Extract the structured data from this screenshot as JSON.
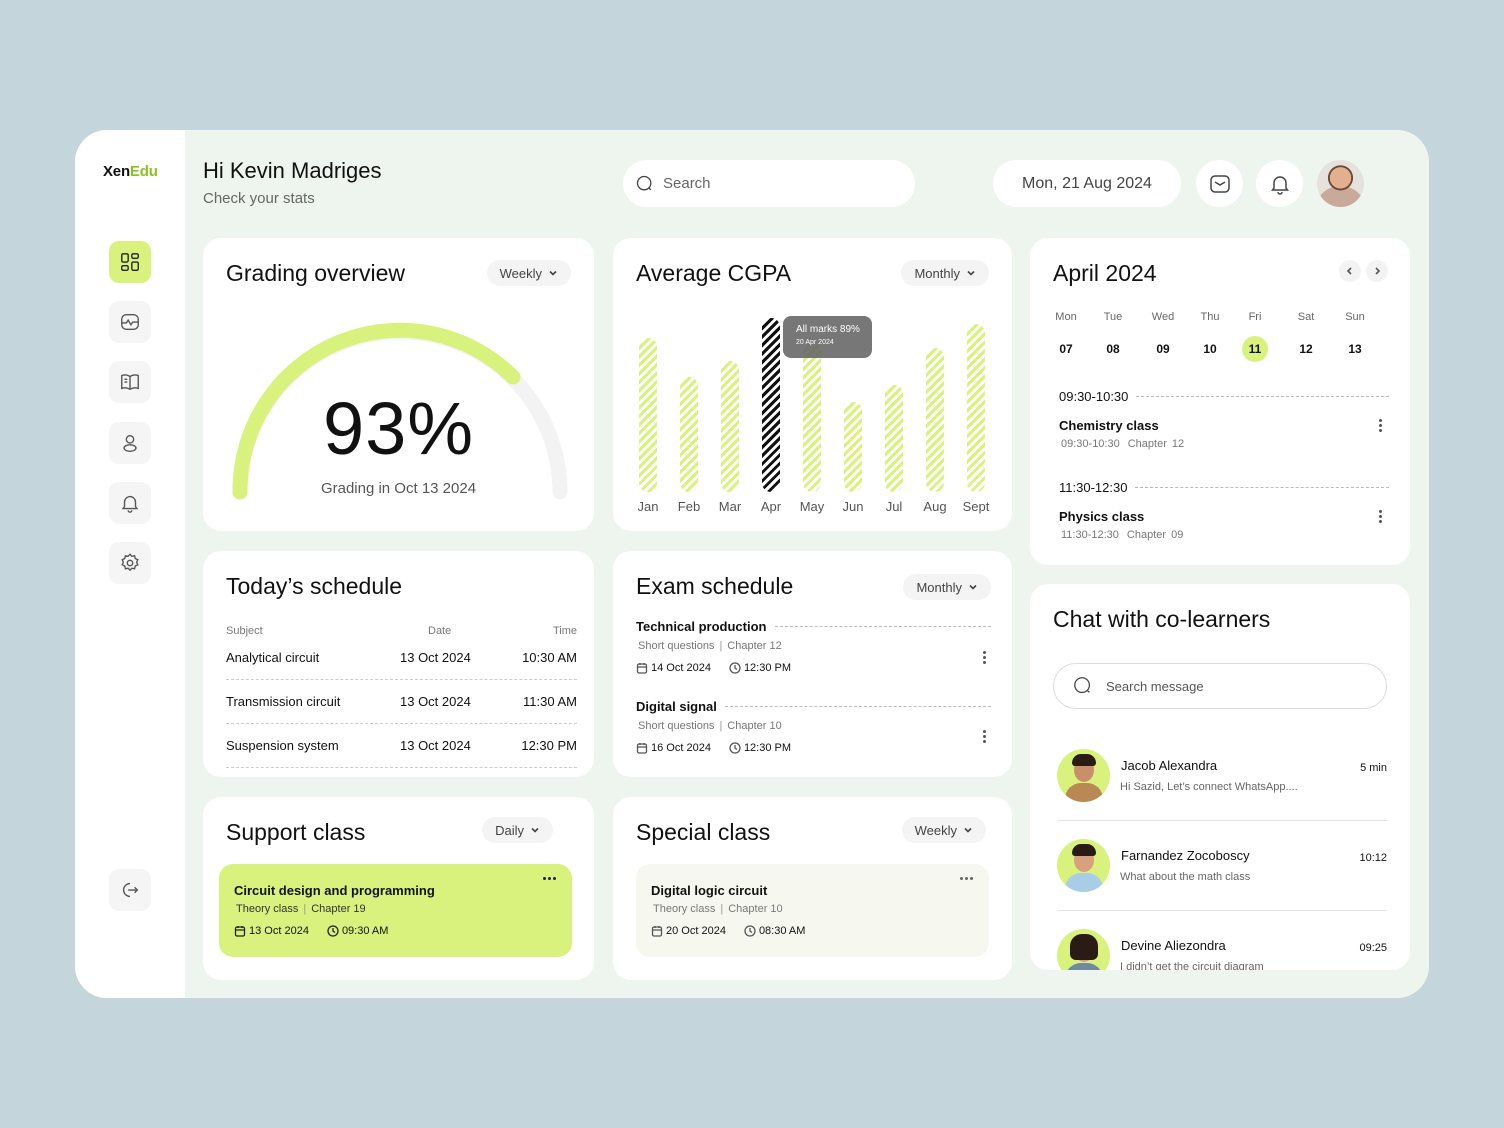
{
  "brand": {
    "name_part1": "Xen",
    "name_part2": "Edu",
    "accent_color": "#8cc21f"
  },
  "header": {
    "greeting": "Hi Kevin Madriges",
    "subtitle": "Check your stats",
    "search_placeholder": "Search",
    "date": "Mon, 21 Aug 2024"
  },
  "sidebar": {
    "items": [
      {
        "name": "dashboard",
        "icon": "grid-icon",
        "active": true
      },
      {
        "name": "activity",
        "icon": "activity-icon",
        "active": false
      },
      {
        "name": "courses",
        "icon": "book-icon",
        "active": false
      },
      {
        "name": "profile",
        "icon": "user-icon",
        "active": false
      },
      {
        "name": "notifications",
        "icon": "bell-icon",
        "active": false
      },
      {
        "name": "settings",
        "icon": "gear-icon",
        "active": false
      }
    ],
    "logout_icon": "logout-icon"
  },
  "grading": {
    "title": "Grading overview",
    "filter": "Weekly",
    "value": "93%",
    "percent": 93,
    "caption": "Grading in Oct 13 2024",
    "accent_color": "#d9f27d"
  },
  "cgpa": {
    "title": "Average CGPA",
    "filter": "Monthly",
    "tooltip": {
      "label": "All marks 89%",
      "date": "20 Apr 2024"
    }
  },
  "chart_data": {
    "type": "bar",
    "title": "Average CGPA",
    "categories": [
      "Jan",
      "Feb",
      "Mar",
      "Apr",
      "May",
      "Jun",
      "Jul",
      "Aug",
      "Sept"
    ],
    "values": [
      79,
      59,
      67,
      89,
      77,
      46,
      55,
      74,
      86
    ],
    "highlighted": "Apr",
    "xlabel": "",
    "ylabel": "",
    "ylim": [
      0,
      100
    ],
    "grid": false,
    "annotation": "All marks 89% — 20 Apr 2024",
    "colors": {
      "bar": "#d9f27d",
      "active": "#111111"
    }
  },
  "calendar": {
    "title": "April 2024",
    "days": [
      {
        "name": "Mon",
        "date": "07"
      },
      {
        "name": "Tue",
        "date": "08"
      },
      {
        "name": "Wed",
        "date": "09"
      },
      {
        "name": "Thu",
        "date": "10"
      },
      {
        "name": "Fri",
        "date": "11",
        "selected": true
      },
      {
        "name": "Sat",
        "date": "12"
      },
      {
        "name": "Sun",
        "date": "13"
      }
    ],
    "slots": [
      {
        "time": "09:30-10:30",
        "title": "Chemistry class",
        "sub_time": "09:30-10:30",
        "chapter": "Chapter 12"
      },
      {
        "time": "11:30-12:30",
        "title": "Physics class",
        "sub_time": "11:30-12:30",
        "chapter": "Chapter 09"
      }
    ]
  },
  "schedule": {
    "title": "Today’s schedule",
    "columns": [
      "Subject",
      "Date",
      "Time"
    ],
    "rows": [
      {
        "subject": "Analytical circuit",
        "date": "13 Oct 2024",
        "time": "10:30 AM"
      },
      {
        "subject": "Transmission circuit",
        "date": "13 Oct 2024",
        "time": "11:30 AM"
      },
      {
        "subject": "Suspension system",
        "date": "13 Oct 2024",
        "time": "12:30 PM"
      }
    ]
  },
  "exams": {
    "title": "Exam schedule",
    "filter": "Monthly",
    "items": [
      {
        "title": "Technical production",
        "type": "Short questions",
        "chapter": "Chapter 12",
        "date": "14 Oct 2024",
        "time": "12:30 PM"
      },
      {
        "title": "Digital signal",
        "type": "Short questions",
        "chapter": "Chapter 10",
        "date": "16 Oct 2024",
        "time": "12:30 PM"
      }
    ]
  },
  "support": {
    "title": "Support class",
    "filter": "Daily",
    "item": {
      "title": "Circuit design and programming",
      "type": "Theory class",
      "chapter": "Chapter 19",
      "date": "13 Oct 2024",
      "time": "09:30 AM"
    }
  },
  "special": {
    "title": "Special class",
    "filter": "Weekly",
    "item": {
      "title": "Digital logic circuit",
      "type": "Theory class",
      "chapter": "Chapter 10",
      "date": "20 Oct 2024",
      "time": "08:30 AM"
    }
  },
  "chat": {
    "title": "Chat with co-learners",
    "search_placeholder": "Search message",
    "items": [
      {
        "name": "Jacob Alexandra",
        "message": "Hi Sazid, Let’s connect WhatsApp....",
        "time": "5 min"
      },
      {
        "name": "Farnandez Zocoboscy",
        "message": "What about the math class",
        "time": "10:12"
      },
      {
        "name": "Devine Aliezondra",
        "message": "I didn’t get the circuit diagram",
        "time": "09:25"
      }
    ]
  }
}
